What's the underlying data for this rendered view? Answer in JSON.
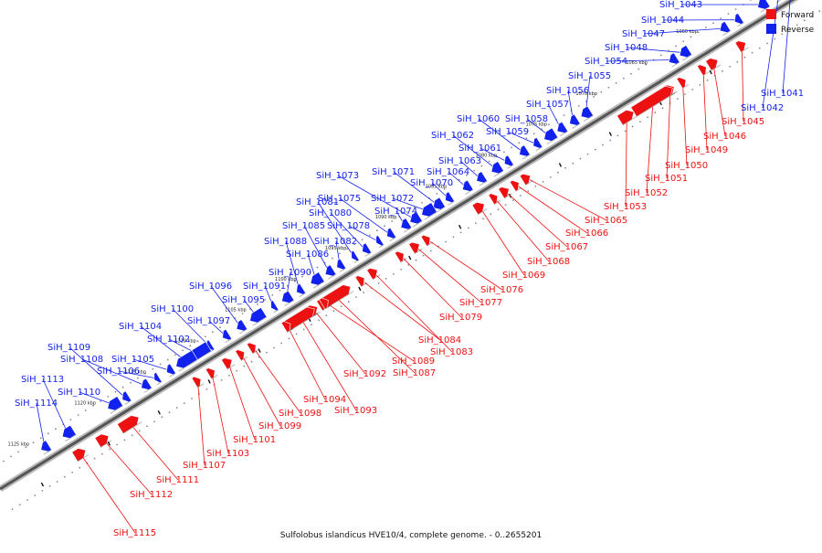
{
  "caption": "Sulfolobus islandicus HVE10/4, complete genome. - 0..2655201",
  "legend": [
    {
      "label": "Forward",
      "color": "#ee1111"
    },
    {
      "label": "Reverse",
      "color": "#1122ee"
    }
  ],
  "colors": {
    "forward": "#ee1111",
    "reverse": "#1122ee",
    "backbone": "#555555"
  },
  "ticks": [
    "1060 kbp",
    "1065 kbp",
    "1070 kbp",
    "1075 kbp",
    "1080 kbp",
    "1085 kbp",
    "1090 kbp",
    "1095 kbp",
    "1100 kbp",
    "1105 kbp",
    "1110 kbp",
    "1115 kbp",
    "1120 kbp",
    "1125 kbp"
  ],
  "forward_labels": [
    "SiH_1045",
    "SiH_1046",
    "SiH_1049",
    "SiH_1050",
    "SiH_1051",
    "SiH_1052",
    "SiH_1053",
    "SiH_1065",
    "SiH_1066",
    "SiH_1067",
    "SiH_1068",
    "SiH_1069",
    "SiH_1076",
    "SiH_1077",
    "SiH_1079",
    "SiH_1083",
    "SiH_1084",
    "SiH_1087",
    "SiH_1089",
    "SiH_1092",
    "SiH_1093",
    "SiH_1094",
    "SiH_1098",
    "SiH_1099",
    "SiH_1101",
    "SiH_1103",
    "SiH_1107",
    "SiH_1111",
    "SiH_1112",
    "SiH_1115"
  ],
  "reverse_labels": [
    "SiH_1041",
    "SiH_1042",
    "SiH_1043",
    "SiH_1044",
    "SiH_1047",
    "SiH_1048",
    "SiH_1054",
    "SiH_1055",
    "SiH_1056",
    "SiH_1057",
    "SiH_1058",
    "SiH_1059",
    "SiH_1060",
    "SiH_1061",
    "SiH_1062",
    "SiH_1063",
    "SiH_1064",
    "SiH_1070",
    "SiH_1071",
    "SiH_1072",
    "SiH_1073",
    "SiH_1074",
    "SiH_1075",
    "SiH_1078",
    "SiH_1080",
    "SiH_1081",
    "SiH_1082",
    "SiH_1085",
    "SiH_1086",
    "SiH_1088",
    "SiH_1090",
    "SiH_1091",
    "SiH_1095",
    "SiH_1096",
    "SiH_1097",
    "SiH_1100",
    "SiH_1102",
    "SiH_1104",
    "SiH_1105",
    "SiH_1106",
    "SiH_1108",
    "SiH_1109",
    "SiH_1110",
    "SiH_1113",
    "SiH_1114"
  ]
}
